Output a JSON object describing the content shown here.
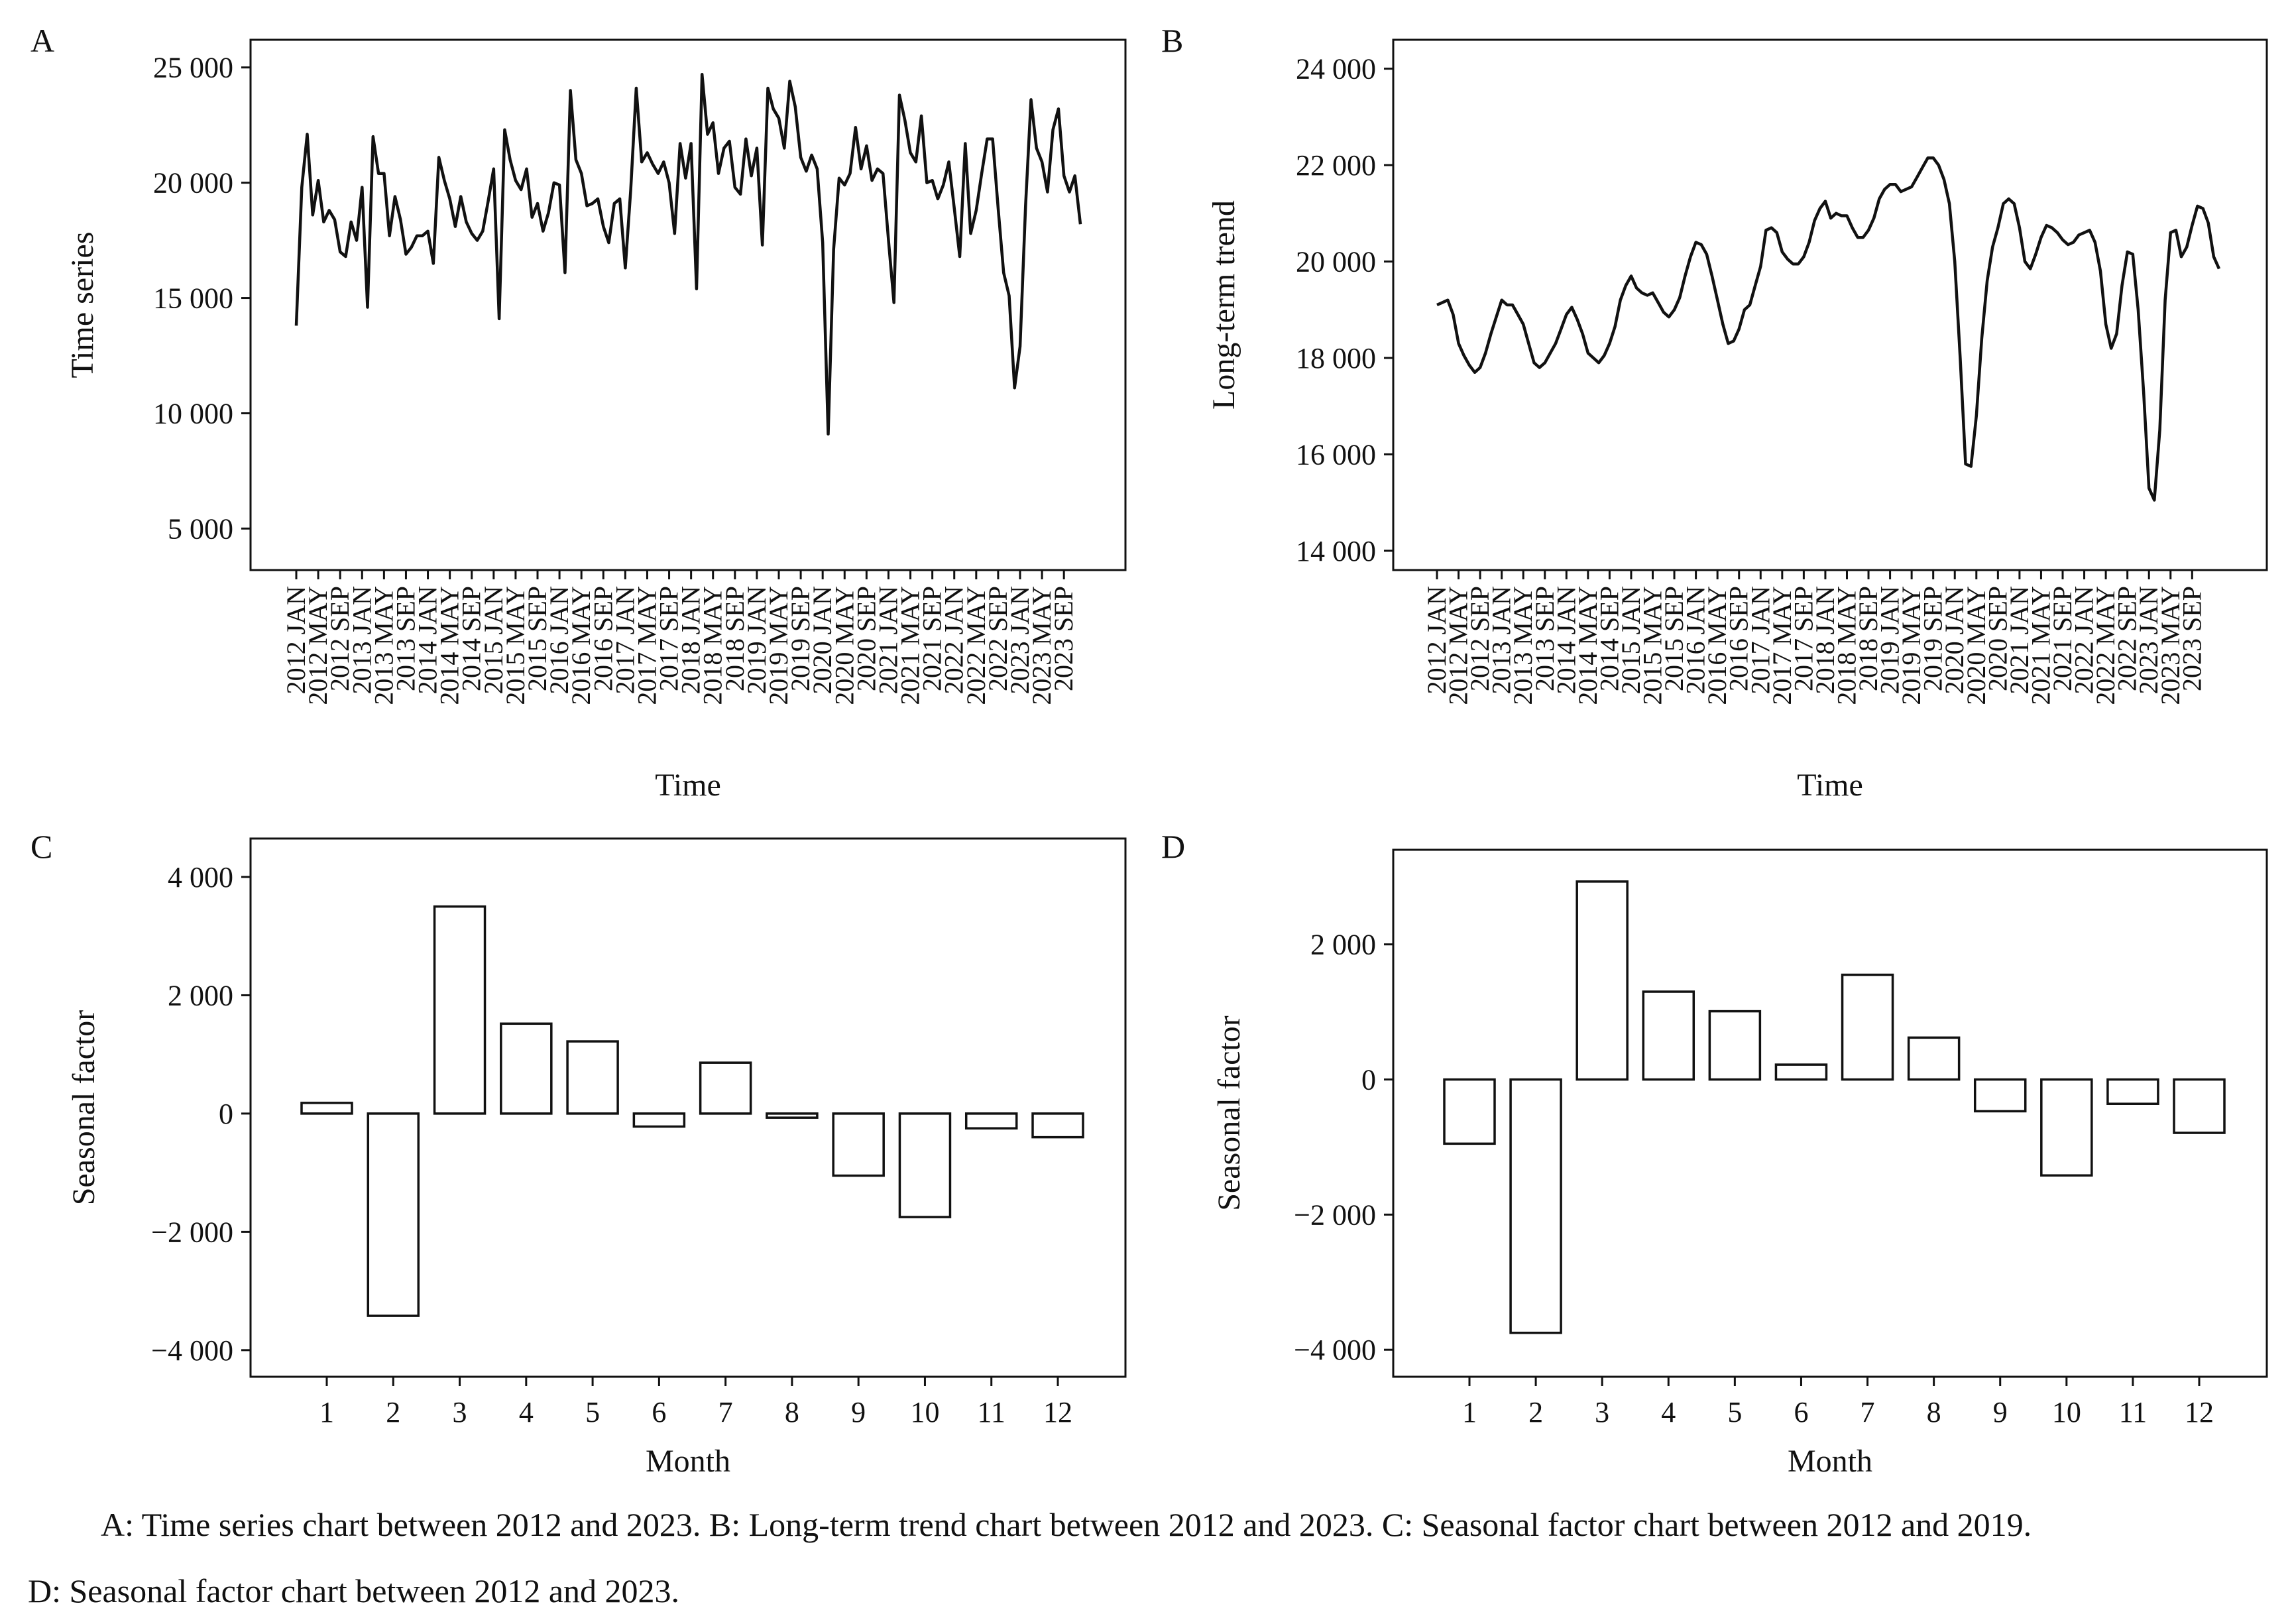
{
  "chart_data": [
    {
      "panel": "A",
      "type": "line",
      "xlabel": "Time",
      "ylabel": "Time series",
      "ylim": [
        3200,
        26200
      ],
      "yticks": [
        5000,
        10000,
        15000,
        20000,
        25000
      ],
      "ytick_labels": [
        "5 000",
        "10 000",
        "15 000",
        "20 000",
        "25 000"
      ],
      "xtick_labels": [
        "2012 JAN",
        "2012 MAY",
        "2012 SEP",
        "2013 JAN",
        "2013 MAY",
        "2013 SEP",
        "2014 JAN",
        "2014 MAY",
        "2014 SEP",
        "2015 JAN",
        "2015 MAY",
        "2015 SEP",
        "2016 JAN",
        "2016 MAY",
        "2016 SEP",
        "2017 JAN",
        "2017 MAY",
        "2017 SEP",
        "2018 JAN",
        "2018 MAY",
        "2018 SEP",
        "2019 JAN",
        "2019 MAY",
        "2019 SEP",
        "2020 JAN",
        "2020 MAY",
        "2020 SEP",
        "2021 JAN",
        "2021 MAY",
        "2021 SEP",
        "2022 JAN",
        "2022 MAY",
        "2022 SEP",
        "2023 JAN",
        "2023 MAY",
        "2023 SEP"
      ],
      "values": [
        13800,
        19800,
        22100,
        18600,
        20100,
        18300,
        18800,
        18400,
        17000,
        16800,
        18300,
        17500,
        19800,
        14600,
        22000,
        20400,
        20400,
        17700,
        19400,
        18400,
        16900,
        17200,
        17700,
        17700,
        17900,
        16500,
        21100,
        20100,
        19300,
        18100,
        19400,
        18300,
        17800,
        17500,
        17900,
        19200,
        20600,
        14100,
        22300,
        21000,
        20100,
        19700,
        20600,
        18500,
        19100,
        17900,
        18700,
        20000,
        19900,
        16100,
        24000,
        21000,
        20400,
        19000,
        19100,
        19300,
        18100,
        17400,
        19100,
        19300,
        16300,
        19700,
        24100,
        20900,
        21300,
        20800,
        20400,
        20900,
        20000,
        17800,
        21700,
        20200,
        21700,
        15400,
        24700,
        22100,
        22600,
        20400,
        21500,
        21800,
        19800,
        19500,
        21900,
        20300,
        21500,
        17300,
        24100,
        23200,
        22800,
        21500,
        24400,
        23300,
        21100,
        20500,
        21200,
        20600,
        17400,
        9100,
        17100,
        20200,
        19900,
        20400,
        22400,
        20600,
        21600,
        20100,
        20600,
        20400,
        17500,
        14800,
        23800,
        22700,
        21300,
        20900,
        22900,
        20000,
        20100,
        19300,
        19900,
        20900,
        18900,
        16800,
        21700,
        17800,
        18800,
        20400,
        21900,
        21900,
        18900,
        16100,
        15100,
        11100,
        12900,
        19000,
        23600,
        21500,
        20900,
        19600,
        22300,
        23200,
        20300,
        19600,
        20300,
        18200
      ]
    },
    {
      "panel": "B",
      "type": "line",
      "xlabel": "Time",
      "ylabel": "Long-term trend",
      "ylim": [
        13600,
        24600
      ],
      "yticks": [
        14000,
        16000,
        18000,
        20000,
        22000,
        24000
      ],
      "ytick_labels": [
        "14 000",
        "16 000",
        "18 000",
        "20 000",
        "22 000",
        "24 000"
      ],
      "xtick_labels": [
        "2012 JAN",
        "2012 MAY",
        "2012 SEP",
        "2013 JAN",
        "2013 MAY",
        "2013 SEP",
        "2014 JAN",
        "2014 MAY",
        "2014 SEP",
        "2015 JAN",
        "2015 MAY",
        "2015 SEP",
        "2016 JAN",
        "2016 MAY",
        "2016 SEP",
        "2017 JAN",
        "2017 MAY",
        "2017 SEP",
        "2018 JAN",
        "2018 MAY",
        "2018 SEP",
        "2019 JAN",
        "2019 MAY",
        "2019 SEP",
        "2020 JAN",
        "2020 MAY",
        "2020 SEP",
        "2021 JAN",
        "2021 MAY",
        "2021 SEP",
        "2022 JAN",
        "2022 MAY",
        "2022 SEP",
        "2023 JAN",
        "2023 MAY",
        "2023 SEP"
      ],
      "values": [
        19100,
        19150,
        19200,
        18900,
        18300,
        18050,
        17850,
        17700,
        17800,
        18100,
        18500,
        18850,
        19200,
        19100,
        19100,
        18900,
        18700,
        18300,
        17900,
        17800,
        17900,
        18100,
        18300,
        18600,
        18900,
        19050,
        18800,
        18500,
        18100,
        18000,
        17900,
        18050,
        18300,
        18650,
        19200,
        19500,
        19700,
        19450,
        19350,
        19300,
        19350,
        19150,
        18950,
        18850,
        19000,
        19250,
        19700,
        20100,
        20400,
        20350,
        20150,
        19700,
        19200,
        18700,
        18300,
        18350,
        18600,
        19000,
        19100,
        19500,
        19900,
        20650,
        20700,
        20600,
        20200,
        20050,
        19950,
        19950,
        20100,
        20400,
        20850,
        21100,
        21250,
        20900,
        21000,
        20950,
        20950,
        20700,
        20500,
        20500,
        20650,
        20900,
        21300,
        21500,
        21600,
        21600,
        21450,
        21500,
        21550,
        21750,
        21950,
        22150,
        22150,
        22000,
        21700,
        21200,
        20000,
        18000,
        15800,
        15750,
        16800,
        18400,
        19600,
        20300,
        20700,
        21200,
        21300,
        21200,
        20700,
        20000,
        19850,
        20150,
        20500,
        20750,
        20700,
        20600,
        20450,
        20350,
        20400,
        20550,
        20600,
        20650,
        20400,
        19800,
        18700,
        18200,
        18500,
        19500,
        20200,
        20150,
        19000,
        17300,
        15300,
        15050,
        16500,
        19200,
        20600,
        20650,
        20100,
        20300,
        20750,
        21150,
        21100,
        20800,
        20100,
        19850
      ]
    },
    {
      "panel": "C",
      "type": "bar",
      "xlabel": "Month",
      "ylabel": "Seasonal factor",
      "ylim": [
        -4450,
        4650
      ],
      "yticks": [
        -4000,
        -2000,
        0,
        2000,
        4000
      ],
      "ytick_labels": [
        "−4 000",
        "−2 000",
        "0",
        "2 000",
        "4 000"
      ],
      "categories": [
        "1",
        "2",
        "3",
        "4",
        "5",
        "6",
        "7",
        "8",
        "9",
        "10",
        "11",
        "12"
      ],
      "values": [
        180,
        -3420,
        3500,
        1520,
        1220,
        -220,
        860,
        -70,
        -1050,
        -1750,
        -250,
        -400
      ]
    },
    {
      "panel": "D",
      "type": "bar",
      "xlabel": "Month",
      "ylabel": "Seasonal factor",
      "ylim": [
        -4400,
        3400
      ],
      "yticks": [
        -4000,
        -2000,
        0,
        2000
      ],
      "ytick_labels": [
        "−4 000",
        "−2 000",
        "0",
        "2 000"
      ],
      "categories": [
        "1",
        "2",
        "3",
        "4",
        "5",
        "6",
        "7",
        "8",
        "9",
        "10",
        "11",
        "12"
      ],
      "values": [
        -950,
        -3750,
        2930,
        1300,
        1010,
        220,
        1550,
        620,
        -470,
        -1420,
        -360,
        -790
      ]
    }
  ],
  "caption": {
    "line1": "A: Time series chart between 2012 and 2023. B: Long-term trend chart between 2012 and 2023. C: Seasonal factor chart between 2012 and 2019.",
    "line2": "D: Seasonal factor chart between 2012 and 2023."
  }
}
